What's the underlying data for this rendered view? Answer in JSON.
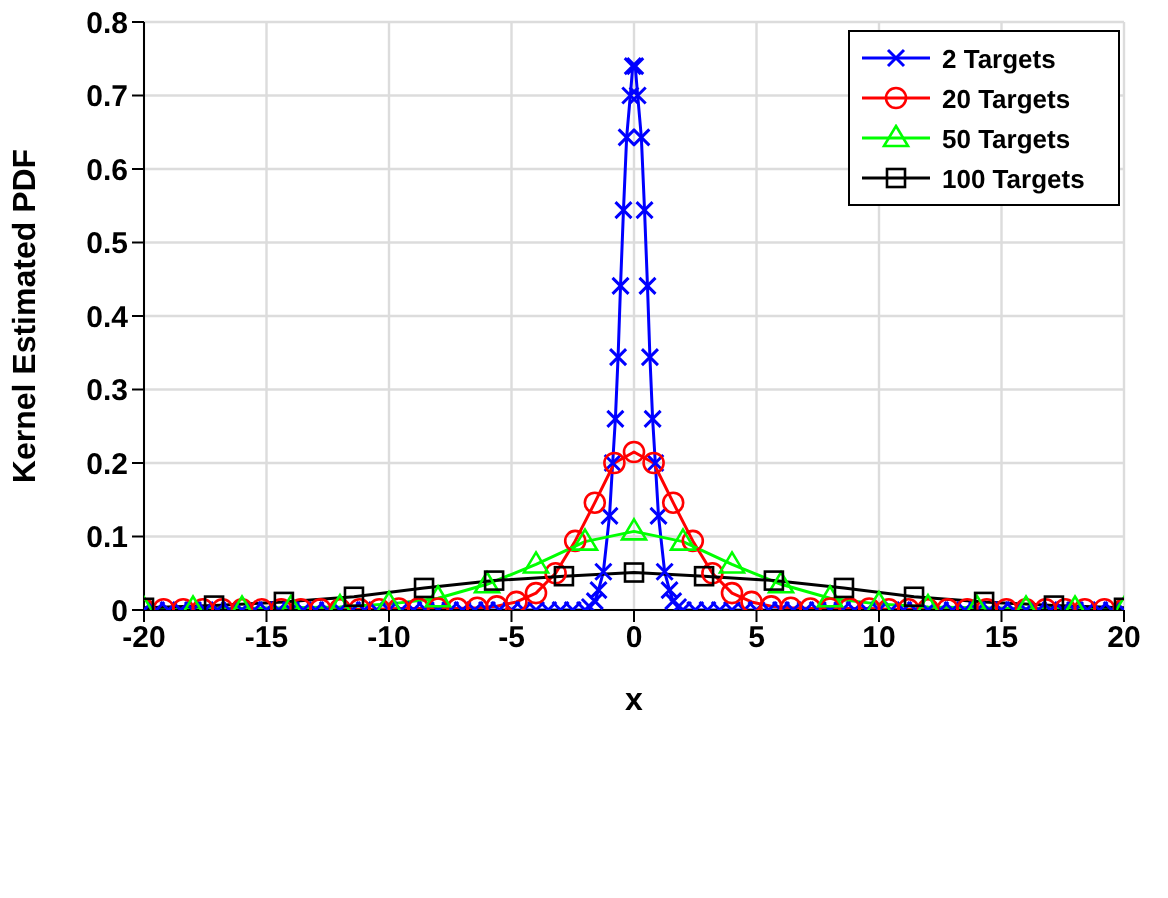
{
  "chart_data": {
    "type": "line",
    "xlabel": "x",
    "ylabel": "Kernel Estimated PDF",
    "xlim": [
      -20,
      20
    ],
    "ylim": [
      0,
      0.8
    ],
    "xticks": [
      -20,
      -15,
      -10,
      -5,
      0,
      5,
      10,
      15,
      20
    ],
    "yticks": [
      0,
      0.1,
      0.2,
      0.3,
      0.4,
      0.5,
      0.6,
      0.7,
      0.8
    ],
    "grid": true,
    "legend": "top right",
    "line_style": "solid",
    "series": [
      {
        "name": "2 Targets",
        "color": "#0000ff",
        "marker": "cross",
        "x": [
          -20,
          -19.5,
          -19,
          -18.5,
          -18,
          -17.5,
          -17,
          -16.5,
          -16,
          -15.5,
          -15,
          -14.5,
          -14,
          -13.5,
          -13,
          -12.5,
          -12,
          -11.5,
          -11,
          -10.5,
          -10,
          -9.5,
          -9,
          -8.5,
          -8,
          -7.5,
          -7,
          -6.5,
          -6,
          -5.5,
          -5,
          -4.5,
          -4,
          -3.5,
          -3,
          -2.5,
          -2,
          -1.8,
          -1.6,
          -1.45,
          -1.25,
          -1,
          -0.87,
          -0.76,
          -0.65,
          -0.55,
          -0.43,
          -0.3,
          -0.15,
          -0.05,
          0.05,
          0.15,
          0.3,
          0.43,
          0.55,
          0.65,
          0.76,
          0.87,
          1,
          1.25,
          1.45,
          1.6,
          1.8,
          2,
          2.5,
          3,
          3.5,
          4,
          4.5,
          5,
          5.5,
          6,
          6.5,
          7,
          7.5,
          8,
          8.5,
          9,
          9.5,
          10,
          10.5,
          11,
          11.5,
          12,
          12.5,
          13,
          13.5,
          14,
          14.5,
          15,
          15.5,
          16,
          16.5,
          17,
          17.5,
          18,
          18.5,
          19,
          19.5,
          20
        ],
        "values": [
          0,
          0,
          0,
          0,
          0,
          0,
          0,
          0,
          0,
          0,
          0,
          0,
          0,
          0,
          0,
          0,
          0,
          0,
          0,
          0,
          0,
          0,
          0,
          0,
          0,
          0,
          0,
          0,
          0,
          0,
          0,
          0,
          0,
          0,
          0,
          0,
          0,
          0.004,
          0.012,
          0.027,
          0.052,
          0.128,
          0.2,
          0.26,
          0.344,
          0.441,
          0.544,
          0.643,
          0.7,
          0.74,
          0.74,
          0.7,
          0.643,
          0.544,
          0.441,
          0.344,
          0.26,
          0.2,
          0.128,
          0.052,
          0.027,
          0.012,
          0.004,
          0,
          0,
          0,
          0,
          0,
          0,
          0,
          0,
          0,
          0,
          0,
          0,
          0,
          0,
          0,
          0,
          0,
          0,
          0,
          0,
          0,
          0,
          0,
          0,
          0,
          0,
          0,
          0,
          0,
          0,
          0,
          0,
          0,
          0,
          0,
          0,
          0
        ]
      },
      {
        "name": "20 Targets",
        "color": "#ff0000",
        "marker": "circle",
        "x": [
          -20,
          -19.2,
          -18.4,
          -17.6,
          -16.8,
          -16,
          -15.2,
          -14.4,
          -13.6,
          -12.8,
          -12,
          -11.2,
          -10.4,
          -9.6,
          -8.8,
          -8,
          -7.2,
          -6.4,
          -5.6,
          -4.8,
          -4,
          -3.2,
          -2.4,
          -1.6,
          -0.8,
          0,
          0.8,
          1.6,
          2.4,
          3.2,
          4,
          4.8,
          5.6,
          6.4,
          7.2,
          8,
          8.8,
          9.6,
          10.4,
          11.2,
          12,
          12.8,
          13.6,
          14.4,
          15.2,
          16,
          16.8,
          17.6,
          18.4,
          19.2,
          20
        ],
        "values": [
          0.001,
          0.001,
          0.001,
          0.001,
          0.001,
          0.001,
          0.001,
          0.001,
          0.001,
          0.001,
          0.001,
          0.001,
          0.001,
          0.002,
          0.002,
          0.002,
          0.002,
          0.003,
          0.005,
          0.011,
          0.023,
          0.05,
          0.094,
          0.146,
          0.2,
          0.215,
          0.2,
          0.146,
          0.094,
          0.05,
          0.023,
          0.011,
          0.005,
          0.003,
          0.002,
          0.002,
          0.002,
          0.002,
          0.001,
          0.001,
          0.001,
          0.001,
          0.001,
          0.001,
          0.001,
          0.001,
          0.001,
          0.001,
          0.001,
          0.001,
          0.001
        ]
      },
      {
        "name": "50 Targets",
        "color": "#00ff00",
        "marker": "triangle",
        "x": [
          -20,
          -18,
          -16,
          -14,
          -12,
          -10,
          -8,
          -6,
          -4,
          -2,
          0,
          2,
          4,
          6,
          8,
          10,
          12,
          14,
          16,
          18,
          20
        ],
        "values": [
          0.001,
          0.002,
          0.002,
          0.003,
          0.004,
          0.008,
          0.016,
          0.035,
          0.062,
          0.093,
          0.107,
          0.093,
          0.062,
          0.035,
          0.016,
          0.008,
          0.004,
          0.003,
          0.002,
          0.002,
          0.001
        ]
      },
      {
        "name": "100 Targets",
        "color": "#000000",
        "marker": "square",
        "x": [
          -20,
          -17.14,
          -14.29,
          -11.43,
          -8.57,
          -5.71,
          -2.86,
          0,
          2.86,
          5.71,
          8.57,
          11.43,
          14.29,
          17.14,
          20
        ],
        "values": [
          0.003,
          0.006,
          0.011,
          0.018,
          0.03,
          0.04,
          0.046,
          0.051,
          0.046,
          0.04,
          0.03,
          0.018,
          0.011,
          0.006,
          0.003
        ]
      }
    ]
  }
}
